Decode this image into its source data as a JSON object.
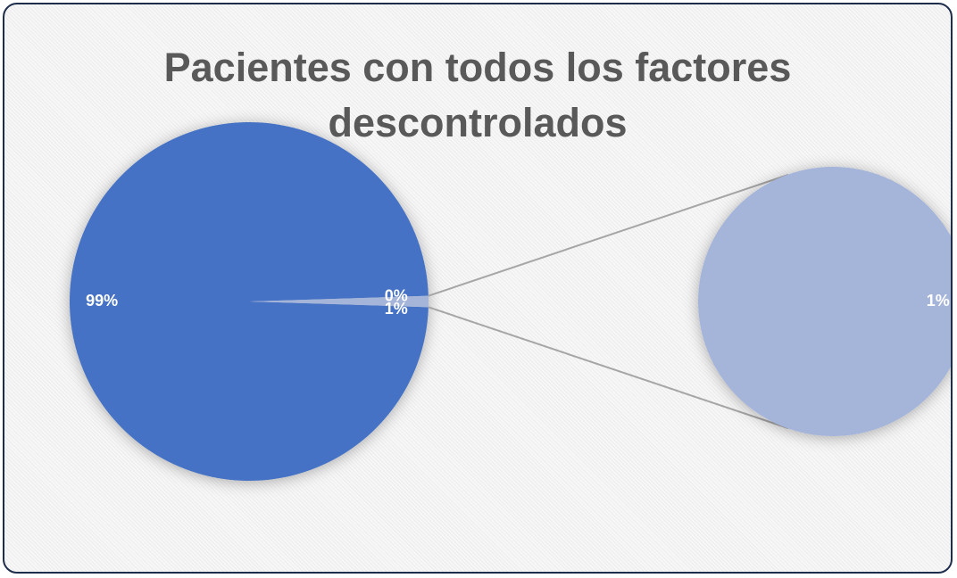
{
  "chart_data": {
    "type": "pie",
    "title": "Pacientes con todos los factores descontrolados",
    "values": [
      99,
      0,
      1
    ],
    "value_labels": [
      "99%",
      "0%",
      "1%"
    ],
    "colors": [
      "#4472c4",
      "#7f96d0",
      "#a5b4d9"
    ],
    "secondary": {
      "values": [
        1
      ],
      "value_labels": [
        "1%"
      ],
      "color": "#a5b4d9"
    }
  }
}
